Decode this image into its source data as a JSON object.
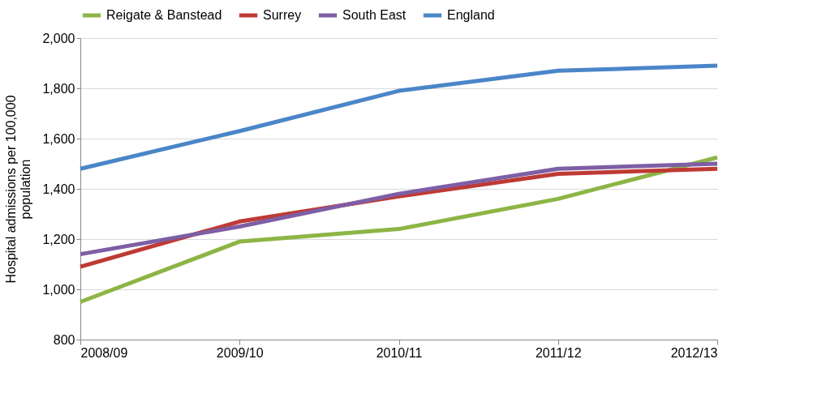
{
  "chart_data": {
    "type": "line",
    "ylabel": "Hospital admissions per 100,000 population",
    "categories": [
      "2008/09",
      "2009/10",
      "2010/11",
      "2011/12",
      "2012/13"
    ],
    "series": [
      {
        "name": "Reigate & Banstead",
        "color": "#8db545",
        "values": [
          950,
          1190,
          1240,
          1360,
          1525
        ]
      },
      {
        "name": "Surrey",
        "color": "#be3a34",
        "values": [
          1090,
          1270,
          1370,
          1460,
          1480
        ]
      },
      {
        "name": "South East",
        "color": "#7e5ea5",
        "values": [
          1140,
          1250,
          1380,
          1480,
          1500
        ]
      },
      {
        "name": "England",
        "color": "#4a86c8",
        "values": [
          1480,
          1630,
          1790,
          1870,
          1890
        ]
      }
    ],
    "ylim": [
      800,
      2000
    ],
    "yticks": [
      800,
      {
        "value": 1000,
        "label": "1,000"
      },
      {
        "value": 1200,
        "label": "1,200"
      },
      {
        "value": 1400,
        "label": "1,400"
      },
      {
        "value": 1600,
        "label": "1,600"
      },
      {
        "value": 1800,
        "label": "1,800"
      },
      {
        "value": 2000,
        "label": "2,000"
      }
    ],
    "grid": "y",
    "legend": "top",
    "marker": "none",
    "line_style": "solid"
  }
}
